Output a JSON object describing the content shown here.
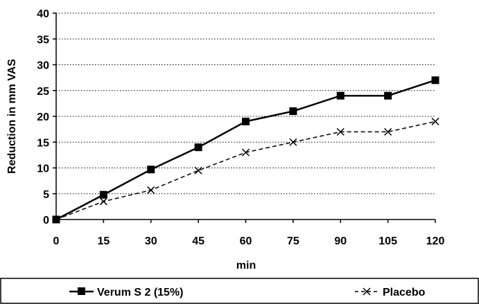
{
  "chart_data": {
    "type": "line",
    "title": "",
    "xlabel": "min",
    "ylabel": "Reduction in mm VAS",
    "x": [
      0,
      15,
      30,
      45,
      60,
      75,
      90,
      105,
      120
    ],
    "xlim": [
      0,
      120
    ],
    "ylim": [
      0,
      40
    ],
    "yticks": [
      0,
      5,
      10,
      15,
      20,
      25,
      30,
      35,
      40
    ],
    "grid": "horizontal dotted",
    "legend_position": "bottom",
    "series": [
      {
        "name": "Verum S 2 (15%)",
        "values": [
          0,
          4.8,
          9.7,
          14,
          19,
          21,
          24,
          24,
          27
        ],
        "style": "solid",
        "marker": "square",
        "color": "#000000"
      },
      {
        "name": "Placebo",
        "values": [
          0,
          3.5,
          5.7,
          9.5,
          13,
          15,
          17,
          17,
          19
        ],
        "style": "dashed",
        "marker": "x",
        "color": "#000000"
      }
    ]
  }
}
